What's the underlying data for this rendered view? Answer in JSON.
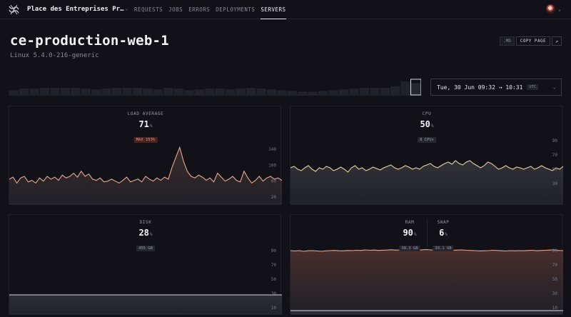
{
  "nav": {
    "app_title": "Place des Entreprises Pr…",
    "items": [
      {
        "label": "REQUESTS",
        "active": false
      },
      {
        "label": "JOBS",
        "active": false
      },
      {
        "label": "ERRORS",
        "active": false
      },
      {
        "label": "DEPLOYMENTS",
        "active": false
      },
      {
        "label": "SERVERS",
        "active": true
      }
    ]
  },
  "icons": {
    "logo": "wave-logo-icon",
    "app_chevron": "chevron-down-icon",
    "avatar_chevron": "chevron-down-icon",
    "external": "external-link-icon",
    "date_chevron": "chevron-down-icon"
  },
  "header": {
    "title": "ce-production-web-1",
    "subtitle": "Linux 5.4.0-216-generic",
    "md_label": ".MD",
    "copy_label": "COPY PAGE",
    "external_glyph": "↗"
  },
  "timeline": {
    "values": [
      7,
      9,
      9,
      10,
      10,
      10,
      10,
      9,
      8,
      9,
      10,
      10,
      10,
      9,
      8,
      10,
      9,
      7,
      8,
      9,
      9,
      8,
      9,
      10,
      9,
      8,
      7,
      6,
      5,
      5,
      6,
      7,
      8,
      9,
      10,
      10,
      10,
      12,
      18,
      16
    ],
    "selected_index": 39
  },
  "date_range": {
    "label": "Tue, 30 Jun 09:32 → 10:31",
    "timezone": "UTC"
  },
  "colors": {
    "warm_line": "#e8a890",
    "cool_line": "#d8d8e4",
    "cpu_line": "#e6d0a0",
    "alert": "#e0968a"
  },
  "panels": {
    "load": {
      "label": "LOAD AVERAGE",
      "value": "71",
      "unit": "%",
      "badge": "MAX 153%",
      "badge_alert": true,
      "y_ticks": [
        "140",
        "100",
        "60",
        "20"
      ]
    },
    "cpu": {
      "label": "CPU",
      "value": "50",
      "unit": "%",
      "badge": "8 CPUs",
      "y_ticks": [
        "90",
        "70",
        "50",
        "30"
      ]
    },
    "disk": {
      "label": "DISK",
      "value": "28",
      "unit": "%",
      "badge": "455 GB",
      "y_ticks": [
        "90",
        "70",
        "50",
        "30",
        "10"
      ]
    },
    "ram": {
      "label": "RAM",
      "value": "90",
      "unit": "%",
      "badge": "38.3 GB"
    },
    "swap": {
      "label": "SWAP",
      "value": "6",
      "unit": "%",
      "badge": "39.1 GB"
    },
    "ram_swap_y_ticks": [
      "90",
      "70",
      "50",
      "30",
      "10"
    ]
  },
  "chart_data": [
    {
      "type": "area",
      "title": "LOAD AVERAGE",
      "ylim": [
        0,
        180
      ],
      "series": [
        {
          "values": [
            65,
            70,
            55,
            68,
            72,
            58,
            62,
            55,
            68,
            60,
            72,
            65,
            70,
            62,
            75,
            68,
            72,
            80,
            70,
            85,
            72,
            78,
            65,
            62,
            68,
            58,
            60,
            65,
            60,
            55,
            62,
            70,
            58,
            62,
            65,
            58,
            72,
            65,
            60,
            68,
            62,
            70,
            65,
            95,
            120,
            145,
            110,
            85,
            72,
            68,
            75,
            70,
            62,
            68,
            58,
            80,
            70,
            60,
            65,
            72,
            62,
            58,
            85,
            68,
            55,
            62,
            72,
            60,
            68,
            72,
            65,
            68,
            62
          ]
        }
      ]
    },
    {
      "type": "area",
      "title": "CPU",
      "ylim": [
        0,
        100
      ],
      "series": [
        {
          "values": [
            52,
            54,
            50,
            48,
            52,
            55,
            50,
            47,
            52,
            50,
            54,
            52,
            48,
            50,
            53,
            50,
            46,
            52,
            55,
            50,
            52,
            48,
            50,
            53,
            51,
            49,
            52,
            54,
            56,
            52,
            50,
            52,
            55,
            53,
            50,
            52,
            50,
            54,
            56,
            58,
            54,
            52,
            55,
            58,
            60,
            57,
            62,
            58,
            56,
            60,
            62,
            58,
            55,
            52,
            55,
            60,
            58,
            54,
            50,
            52,
            55,
            52,
            50,
            53,
            52,
            50,
            52,
            54,
            50,
            52,
            55,
            52,
            50,
            48,
            52,
            50,
            54
          ]
        }
      ]
    },
    {
      "type": "area",
      "title": "DISK",
      "ylim": [
        0,
        100
      ],
      "series": [
        {
          "values": [
            28,
            28,
            28,
            28,
            28,
            28,
            28,
            28,
            28,
            28,
            28,
            28,
            28,
            28,
            28,
            28,
            28,
            28,
            28,
            28,
            28,
            28,
            28,
            28,
            28,
            28,
            28,
            28,
            28,
            28
          ]
        }
      ]
    },
    {
      "type": "area",
      "title": "RAM / SWAP",
      "ylim": [
        0,
        100
      ],
      "series": [
        {
          "name": "RAM",
          "values": [
            90,
            89.5,
            90,
            89,
            89.8,
            90,
            89.5,
            89,
            89.6,
            90,
            90.3,
            89.8,
            89.7,
            90.2,
            90,
            90.5,
            90.2,
            91,
            90.5,
            90.8,
            90.3,
            90.6,
            90.8,
            91.2,
            90.7,
            91,
            90.5,
            91,
            90.6,
            90.4,
            91.2,
            91.5,
            91,
            90.8,
            90.5,
            90.8,
            90.6,
            90.4,
            90.8,
            91,
            90.5,
            90.2,
            90,
            89.6,
            89.8,
            90,
            90.5,
            90.2,
            89.8,
            89.5,
            90,
            89.7,
            90,
            89.8,
            90.2,
            90.5,
            89.8,
            90.2,
            90.5,
            90.8,
            91,
            90.2,
            90
          ]
        },
        {
          "name": "SWAP",
          "values": [
            6,
            6,
            6,
            6,
            6,
            6,
            6,
            6,
            6,
            6,
            6,
            6,
            6,
            6,
            6,
            6,
            6,
            6,
            6,
            6,
            6,
            6,
            6,
            6,
            6,
            6,
            6,
            6,
            6,
            6
          ]
        }
      ]
    }
  ]
}
